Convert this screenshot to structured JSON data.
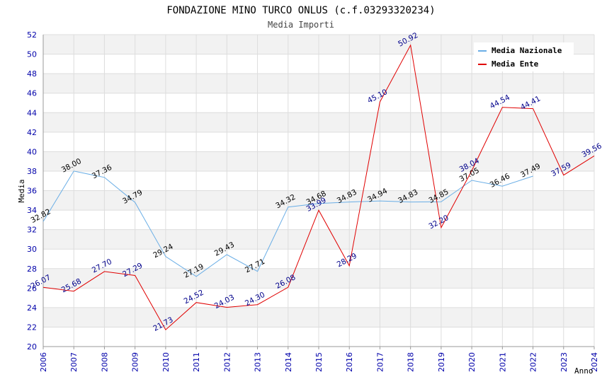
{
  "chart_data": {
    "type": "line",
    "title": "FONDAZIONE MINO TURCO ONLUS (c.f.03293320234)",
    "subtitle": "Media Importi",
    "xlabel": "Anno",
    "ylabel": "Media",
    "ylim": [
      20,
      52
    ],
    "ytick_step": 2,
    "grid": true,
    "legend_placement": "top-right",
    "categories": [
      "2006",
      "2007",
      "2008",
      "2009",
      "2010",
      "2011",
      "2012",
      "2013",
      "2014",
      "2015",
      "2016",
      "2017",
      "2018",
      "2019",
      "2020",
      "2021",
      "2022",
      "2023",
      "2024"
    ],
    "series": [
      {
        "name": "Media Nazionale",
        "color": "#6aaee6",
        "label_color": "#000000",
        "values": [
          32.82,
          38.0,
          37.36,
          34.79,
          29.24,
          27.19,
          29.43,
          27.71,
          34.32,
          34.68,
          34.83,
          34.94,
          34.83,
          34.85,
          37.05,
          36.46,
          37.49,
          null,
          null
        ],
        "labels": [
          "32.82",
          "38.00",
          "37.36",
          "34.79",
          "29.24",
          "27.19",
          "29.43",
          "27.71",
          "34.32",
          "34.68",
          "34.83",
          "34.94",
          "34.83",
          "34.85",
          "37.05",
          "36.46",
          "37.49",
          null,
          null
        ]
      },
      {
        "name": "Media Ente",
        "color": "#e00000",
        "label_color": "#00008b",
        "values": [
          26.07,
          25.68,
          27.7,
          27.29,
          21.73,
          24.52,
          24.03,
          24.3,
          26.08,
          33.99,
          28.29,
          45.1,
          50.92,
          32.2,
          38.04,
          44.54,
          44.41,
          37.59,
          39.56
        ],
        "labels": [
          "26.07",
          "25.68",
          "27.70",
          "27.29",
          "21.73",
          "24.52",
          "24.03",
          "24.30",
          "26.08",
          "33.99",
          "28.29",
          "45.10",
          "50.92",
          "32.20",
          "38.04",
          "44.54",
          "44.41",
          "37.59",
          "39.56"
        ]
      }
    ]
  }
}
